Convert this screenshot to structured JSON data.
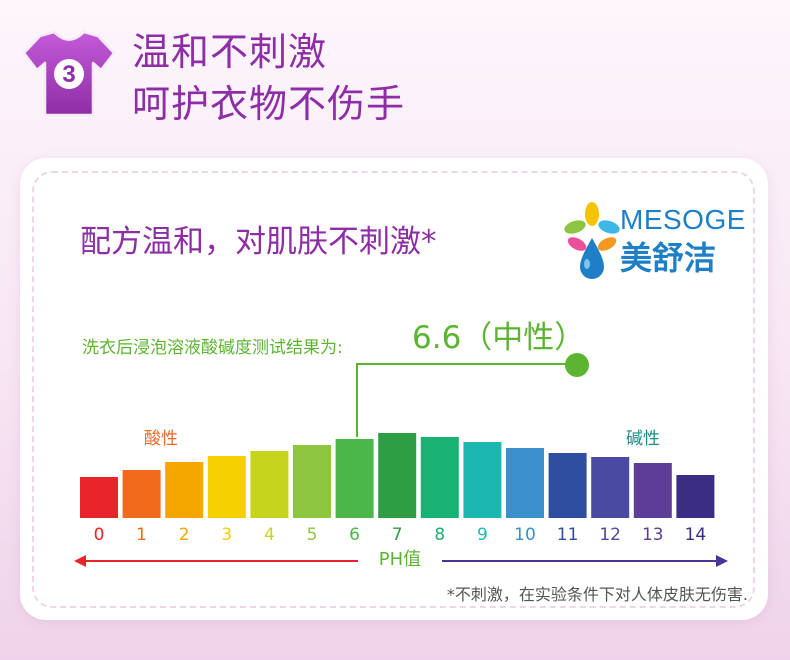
{
  "header": {
    "step_number": "3",
    "line1": "温和不刺激",
    "line2": "呵护衣物不伤手"
  },
  "card": {
    "title": "配方温和，对肌肤不刺激*",
    "test_label": "洗衣后浸泡溶液酸碱度测试结果为:",
    "test_result": "6.6（中性）",
    "footnote": "*不刺激，在实验条件下对人体皮肤无伤害."
  },
  "logo": {
    "name_en": "MESOGE",
    "name_cn": "美舒洁"
  },
  "scale": {
    "acid_label": "酸性",
    "base_label": "碱性",
    "axis_label": "PH值",
    "measured_value": 6.6,
    "ticks": [
      {
        "label": "0",
        "color": "#e8242b"
      },
      {
        "label": "1",
        "color": "#f26b1d"
      },
      {
        "label": "2",
        "color": "#f5a700"
      },
      {
        "label": "3",
        "color": "#f5cf00"
      },
      {
        "label": "4",
        "color": "#c6d41d"
      },
      {
        "label": "5",
        "color": "#8cc63f"
      },
      {
        "label": "6",
        "color": "#4bb649"
      },
      {
        "label": "7",
        "color": "#2e9e45"
      },
      {
        "label": "8",
        "color": "#1ab174"
      },
      {
        "label": "9",
        "color": "#1db7b1"
      },
      {
        "label": "10",
        "color": "#3a8fcd"
      },
      {
        "label": "11",
        "color": "#2f4ea0"
      },
      {
        "label": "12",
        "color": "#4a4aa2"
      },
      {
        "label": "13",
        "color": "#5e3d98"
      },
      {
        "label": "14",
        "color": "#3b2c84"
      }
    ]
  },
  "colors": {
    "headline": "#8d2ea6",
    "accent_green": "#5cb531",
    "logo_blue": "#1e7fc6"
  }
}
